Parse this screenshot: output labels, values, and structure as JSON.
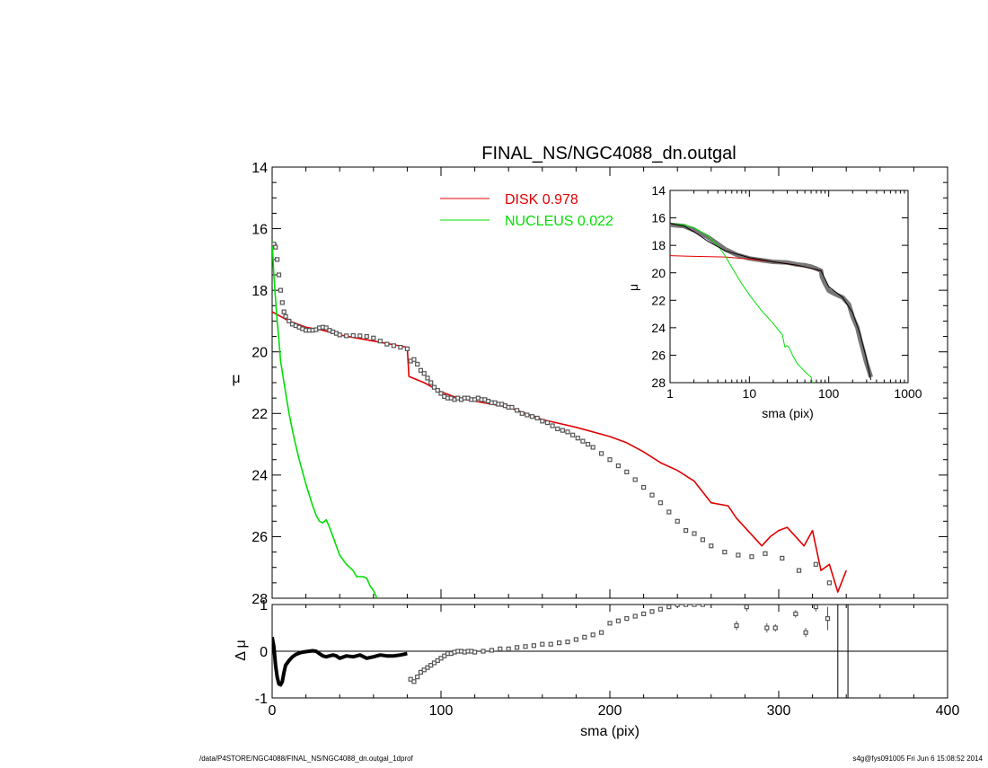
{
  "title": "FINAL_NS/NGC4088_dn.outgal",
  "footer_left": "/data/P4STORE/NGC4088/FINAL_NS/NGC4088_dn.outgal_1dprof",
  "footer_right": "s4g@fys091005  Fri Jun  6 15:08:52 2014",
  "colors": {
    "disk": "#e00000",
    "nucleus": "#00e000",
    "data": "#555555",
    "axis": "#000000"
  },
  "chart_data": [
    {
      "id": "main",
      "type": "scatter",
      "xlabel": "sma (pix)",
      "ylabel": "μ",
      "xlim": [
        0,
        400
      ],
      "ylim": [
        28,
        14
      ],
      "xticks": [
        0,
        100,
        200,
        300,
        400
      ],
      "yticks": [
        14,
        16,
        18,
        20,
        22,
        24,
        26,
        28
      ],
      "legend": [
        {
          "label": "DISK",
          "value": "0.978",
          "color": "#e00000"
        },
        {
          "label": "NUCLEUS",
          "value": "0.022",
          "color": "#00e000"
        }
      ],
      "series": [
        {
          "name": "DISK",
          "kind": "line",
          "color": "#e00000",
          "x": [
            0,
            10,
            20,
            30,
            40,
            50,
            60,
            70,
            80,
            81,
            90,
            100,
            110,
            120,
            140,
            160,
            180,
            200,
            210,
            220,
            230,
            240,
            250,
            260,
            270,
            275,
            290,
            295,
            300,
            305,
            315,
            320,
            325,
            330,
            335,
            340
          ],
          "y": [
            18.7,
            19.0,
            19.2,
            19.3,
            19.45,
            19.55,
            19.65,
            19.75,
            19.85,
            20.8,
            21.0,
            21.3,
            21.5,
            21.6,
            21.8,
            22.2,
            22.45,
            22.75,
            22.95,
            23.25,
            23.6,
            23.85,
            24.2,
            24.9,
            25.0,
            25.4,
            26.3,
            26.0,
            25.8,
            25.7,
            26.3,
            25.8,
            27.1,
            26.9,
            27.8,
            27.1
          ]
        },
        {
          "name": "NUCLEUS",
          "kind": "line",
          "color": "#00e000",
          "x": [
            0,
            1,
            2,
            3,
            4,
            5,
            7,
            10,
            13,
            16,
            20,
            24,
            26,
            28,
            30,
            32,
            34,
            36,
            38,
            40,
            44,
            48,
            50,
            54,
            56,
            58,
            60,
            62
          ],
          "y": [
            16.4,
            17.5,
            18.3,
            19.0,
            19.6,
            20.3,
            21.0,
            22.0,
            22.8,
            23.5,
            24.3,
            25.0,
            25.3,
            25.5,
            25.55,
            25.45,
            25.7,
            26.0,
            26.3,
            26.6,
            26.9,
            27.1,
            27.3,
            27.3,
            27.35,
            27.6,
            27.75,
            28.0
          ]
        },
        {
          "name": "Data",
          "kind": "points",
          "color": "#555555",
          "x": [
            1,
            2,
            3,
            4,
            5,
            6,
            7,
            8,
            10,
            12,
            14,
            16,
            18,
            20,
            22,
            24,
            26,
            28,
            30,
            32,
            34,
            36,
            38,
            40,
            44,
            48,
            52,
            56,
            60,
            64,
            68,
            72,
            76,
            80,
            82,
            84,
            86,
            88,
            90,
            92,
            94,
            96,
            98,
            100,
            102,
            104,
            106,
            108,
            110,
            112,
            114,
            116,
            118,
            120,
            122,
            124,
            126,
            128,
            130,
            132,
            134,
            136,
            138,
            140,
            142,
            145,
            148,
            151,
            154,
            157,
            160,
            163,
            166,
            169,
            172,
            175,
            178,
            181,
            184,
            187,
            190,
            195,
            200,
            205,
            210,
            215,
            220,
            225,
            230,
            235,
            240,
            245,
            250,
            255,
            260,
            268,
            276,
            284,
            292,
            302,
            312,
            322,
            330
          ],
          "y": [
            16.5,
            16.6,
            17.0,
            17.5,
            18.0,
            18.4,
            18.7,
            18.85,
            19.0,
            19.1,
            19.15,
            19.2,
            19.25,
            19.3,
            19.3,
            19.3,
            19.28,
            19.22,
            19.2,
            19.22,
            19.3,
            19.35,
            19.4,
            19.45,
            19.48,
            19.47,
            19.48,
            19.5,
            19.55,
            19.65,
            19.75,
            19.8,
            19.85,
            19.9,
            20.3,
            20.25,
            20.4,
            20.6,
            20.7,
            20.85,
            21.0,
            21.15,
            21.25,
            21.35,
            21.45,
            21.5,
            21.5,
            21.55,
            21.5,
            21.55,
            21.5,
            21.5,
            21.55,
            21.55,
            21.5,
            21.55,
            21.55,
            21.6,
            21.65,
            21.65,
            21.7,
            21.7,
            21.75,
            21.8,
            21.8,
            21.9,
            22.0,
            22.05,
            22.1,
            22.15,
            22.25,
            22.3,
            22.4,
            22.5,
            22.55,
            22.6,
            22.7,
            22.8,
            22.9,
            23.0,
            23.1,
            23.3,
            23.5,
            23.7,
            23.9,
            24.15,
            24.4,
            24.65,
            24.9,
            25.2,
            25.5,
            25.8,
            25.9,
            26.1,
            26.3,
            26.5,
            26.6,
            26.65,
            26.55,
            26.7,
            27.1,
            26.9,
            27.5
          ]
        }
      ]
    },
    {
      "id": "residual",
      "type": "scatter",
      "xlabel": "sma (pix)",
      "ylabel": "Δ μ",
      "xlim": [
        0,
        400
      ],
      "ylim": [
        -1,
        1
      ],
      "xticks": [
        0,
        100,
        200,
        300,
        400
      ],
      "yticks": [
        -1,
        0,
        1
      ],
      "vlines": [
        335,
        341
      ],
      "series": [
        {
          "name": "Residual (inner)",
          "kind": "line",
          "color": "#000000",
          "x": [
            0,
            1,
            2,
            3,
            4,
            5,
            6,
            7,
            8,
            10,
            12,
            14,
            16,
            18,
            20,
            22,
            24,
            26,
            28,
            30,
            32,
            34,
            36,
            38,
            40,
            44,
            48,
            52,
            56,
            60,
            64,
            68,
            72,
            76,
            80
          ],
          "y": [
            0.3,
            0.1,
            -0.3,
            -0.55,
            -0.7,
            -0.72,
            -0.65,
            -0.45,
            -0.3,
            -0.2,
            -0.12,
            -0.07,
            -0.04,
            -0.02,
            -0.01,
            0.0,
            0.01,
            0.0,
            -0.05,
            -0.1,
            -0.12,
            -0.1,
            -0.08,
            -0.1,
            -0.15,
            -0.1,
            -0.12,
            -0.08,
            -0.15,
            -0.12,
            -0.08,
            -0.1,
            -0.1,
            -0.08,
            -0.05
          ]
        },
        {
          "name": "Residual (outer)",
          "kind": "points",
          "color": "#555555",
          "x": [
            82,
            84,
            86,
            88,
            90,
            92,
            94,
            96,
            98,
            100,
            102,
            104,
            106,
            108,
            110,
            112,
            114,
            116,
            118,
            120,
            125,
            130,
            135,
            140,
            145,
            150,
            155,
            160,
            165,
            170,
            175,
            180,
            185,
            190,
            195,
            200,
            205,
            210,
            215,
            220,
            225,
            230,
            235,
            240,
            245,
            250,
            255
          ],
          "y": [
            -0.6,
            -0.65,
            -0.55,
            -0.45,
            -0.4,
            -0.35,
            -0.3,
            -0.25,
            -0.2,
            -0.15,
            -0.1,
            -0.05,
            -0.05,
            -0.02,
            0.0,
            0.0,
            -0.02,
            0.0,
            0.0,
            -0.02,
            0.0,
            0.02,
            0.05,
            0.05,
            0.08,
            0.1,
            0.12,
            0.15,
            0.15,
            0.18,
            0.2,
            0.25,
            0.3,
            0.35,
            0.4,
            0.6,
            0.65,
            0.7,
            0.75,
            0.8,
            0.85,
            0.9,
            0.95,
            1.0,
            1.0,
            1.0,
            1.0
          ]
        },
        {
          "name": "Residual (outliers)",
          "kind": "errpoints",
          "color": "#555555",
          "x": [
            275,
            281,
            293,
            298,
            310,
            316,
            322,
            329
          ],
          "y": [
            0.55,
            0.95,
            0.5,
            0.5,
            0.8,
            0.4,
            0.95,
            0.7
          ],
          "err": [
            0.1,
            0.1,
            0.1,
            0.08,
            0.08,
            0.1,
            0.1,
            0.25
          ]
        }
      ]
    },
    {
      "id": "inset",
      "type": "line",
      "xlabel": "sma (pix)",
      "ylabel": "μ",
      "xscale": "log",
      "xlim": [
        1,
        1000
      ],
      "ylim": [
        28,
        14
      ],
      "xticks": [
        1,
        10,
        100,
        1000
      ],
      "yticks": [
        14,
        16,
        18,
        20,
        22,
        24,
        26,
        28
      ],
      "series": [
        {
          "name": "Data",
          "kind": "thick",
          "color": "#777777",
          "x": [
            1,
            1.5,
            2,
            3,
            4,
            5,
            7,
            10,
            15,
            20,
            30,
            40,
            50,
            60,
            70,
            80,
            82,
            90,
            100,
            120,
            150,
            180,
            200,
            230,
            250,
            270,
            290,
            300,
            320,
            340
          ],
          "y": [
            16.5,
            16.6,
            16.9,
            17.4,
            17.9,
            18.3,
            18.7,
            18.95,
            19.1,
            19.2,
            19.25,
            19.4,
            19.45,
            19.55,
            19.7,
            19.85,
            20.3,
            20.8,
            21.3,
            21.55,
            21.8,
            22.3,
            23.2,
            24.0,
            24.9,
            25.6,
            26.3,
            26.6,
            27.1,
            27.6
          ]
        },
        {
          "name": "DISK",
          "kind": "line",
          "color": "#e00000",
          "x": [
            1,
            2,
            5,
            10,
            20,
            40,
            80
          ],
          "y": [
            18.75,
            18.8,
            18.85,
            19.0,
            19.2,
            19.45,
            19.85
          ]
        },
        {
          "name": "NUCLEUS",
          "kind": "line",
          "color": "#00e000",
          "x": [
            1,
            1.5,
            2,
            3,
            4,
            5,
            6,
            8,
            10,
            14,
            20,
            26,
            28,
            30,
            32,
            35,
            40,
            50,
            60,
            62
          ],
          "y": [
            16.4,
            16.5,
            16.7,
            17.3,
            18.0,
            18.8,
            19.6,
            20.8,
            21.6,
            22.7,
            23.7,
            24.5,
            25.4,
            25.3,
            25.5,
            26.0,
            26.6,
            27.2,
            27.6,
            28.0
          ]
        },
        {
          "name": "Model",
          "kind": "line",
          "color": "#000000",
          "x": [
            1,
            1.5,
            2,
            3,
            5,
            10,
            20,
            40,
            80,
            100,
            150,
            200,
            250,
            300,
            340
          ],
          "y": [
            16.4,
            16.6,
            17.0,
            17.7,
            18.4,
            18.9,
            19.2,
            19.45,
            19.85,
            21.0,
            21.8,
            22.9,
            24.5,
            26.3,
            27.8
          ]
        }
      ]
    }
  ]
}
